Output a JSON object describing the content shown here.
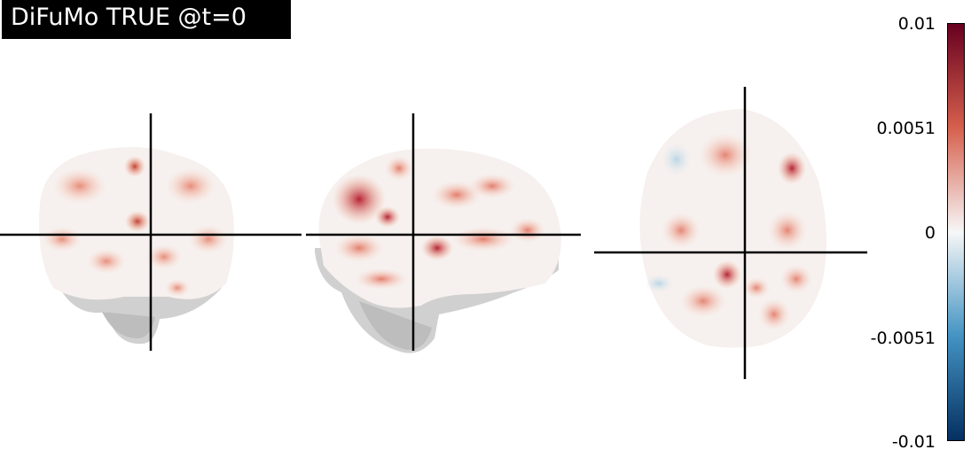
{
  "title": "DiFuMo TRUE @t=0",
  "colorbar": {
    "ticks": [
      "0.01",
      "0.0051",
      "0",
      "-0.0051",
      "-0.01"
    ],
    "colors": {
      "top": "#67001f",
      "upper": "#d6604d",
      "mid": "#f7f7f7",
      "lower": "#4393c3",
      "bottom": "#053061"
    },
    "range": [
      -0.01,
      0.01
    ]
  },
  "views": [
    {
      "name": "coronal"
    },
    {
      "name": "sagittal"
    },
    {
      "name": "axial"
    }
  ]
}
